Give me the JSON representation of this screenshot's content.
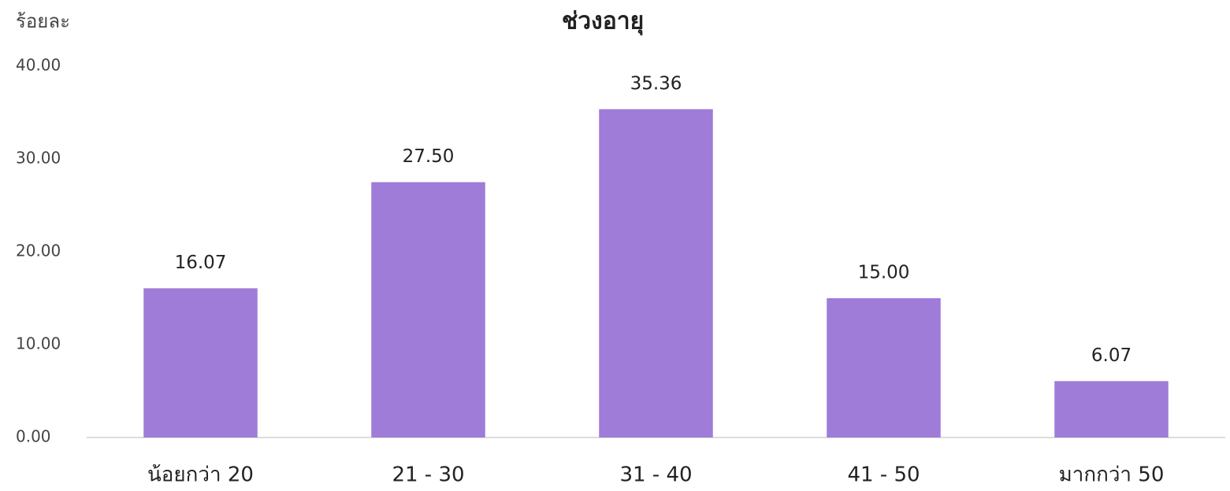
{
  "chart_data": {
    "type": "bar",
    "title": "ช่วงอายุ",
    "y_label": "ร้อยละ",
    "categories": [
      "น้อยกว่า 20",
      "21 - 30",
      "31 - 40",
      "41 - 50",
      "มากกว่า 50"
    ],
    "values": [
      16.07,
      27.5,
      35.36,
      15.0,
      6.07
    ],
    "value_labels": [
      "16.07",
      "27.50",
      "35.36",
      "15.00",
      "6.07"
    ],
    "color": "#9e7cd8",
    "ylim": [
      0,
      40
    ],
    "yticks": [
      {
        "value": 0,
        "label": "0.00"
      },
      {
        "value": 10,
        "label": "10.00"
      },
      {
        "value": 20,
        "label": "20.00"
      },
      {
        "value": 30,
        "label": "30.00"
      },
      {
        "value": 40,
        "label": "40.00"
      }
    ],
    "grid": false
  }
}
